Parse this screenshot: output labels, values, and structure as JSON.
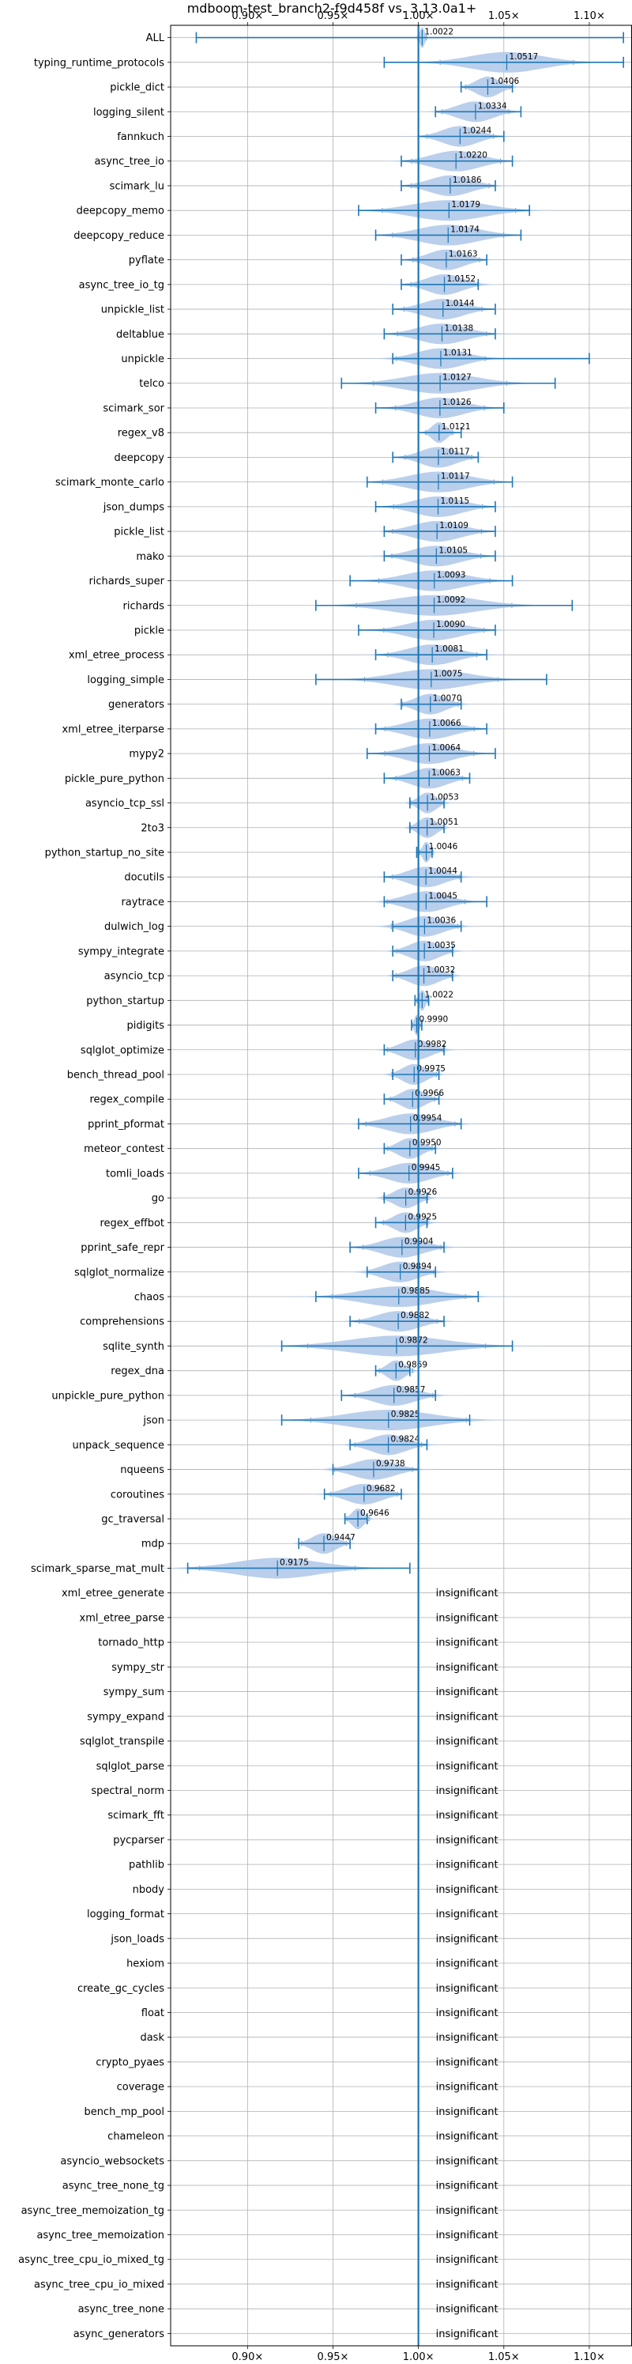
{
  "chart_data": {
    "type": "violin",
    "title": "mdboom-test_branch2-f9d458f vs. 3.13.0a1+",
    "xlim": [
      0.855,
      1.125
    ],
    "xticks": [
      0.9,
      0.95,
      1.0,
      1.05,
      1.1
    ],
    "xtick_labels": [
      "0.90×",
      "0.95×",
      "1.00×",
      "1.05×",
      "1.10×"
    ],
    "reference_line": 1.0,
    "grid": true,
    "colors": {
      "main": "#1f77b4",
      "violin": "#aec7e8",
      "grid": "#b0b0b0"
    },
    "insignificant_text": "insignificant",
    "benchmarks": [
      {
        "name": "ALL",
        "mean": 1.0022,
        "label": "1.0022",
        "min": 0.87,
        "max": 1.12,
        "width": 0.004
      },
      {
        "name": "typing_runtime_protocols",
        "mean": 1.0517,
        "label": "1.0517",
        "min": 0.98,
        "max": 1.12,
        "width": 0.06
      },
      {
        "name": "pickle_dict",
        "mean": 1.0406,
        "label": "1.0406",
        "min": 1.025,
        "max": 1.055,
        "width": 0.02
      },
      {
        "name": "logging_silent",
        "mean": 1.0334,
        "label": "1.0334",
        "min": 1.01,
        "max": 1.06,
        "width": 0.03
      },
      {
        "name": "fannkuch",
        "mean": 1.0244,
        "label": "1.0244",
        "min": 1.0,
        "max": 1.05,
        "width": 0.03
      },
      {
        "name": "async_tree_io",
        "mean": 1.022,
        "label": "1.0220",
        "min": 0.99,
        "max": 1.055,
        "width": 0.04
      },
      {
        "name": "scimark_lu",
        "mean": 1.0186,
        "label": "1.0186",
        "min": 0.99,
        "max": 1.045,
        "width": 0.035
      },
      {
        "name": "deepcopy_memo",
        "mean": 1.0179,
        "label": "1.0179",
        "min": 0.965,
        "max": 1.065,
        "width": 0.06
      },
      {
        "name": "deepcopy_reduce",
        "mean": 1.0174,
        "label": "1.0174",
        "min": 0.975,
        "max": 1.06,
        "width": 0.05
      },
      {
        "name": "pyflate",
        "mean": 1.0163,
        "label": "1.0163",
        "min": 0.99,
        "max": 1.04,
        "width": 0.03
      },
      {
        "name": "async_tree_io_tg",
        "mean": 1.0152,
        "label": "1.0152",
        "min": 0.99,
        "max": 1.035,
        "width": 0.03
      },
      {
        "name": "unpickle_list",
        "mean": 1.0144,
        "label": "1.0144",
        "min": 0.985,
        "max": 1.045,
        "width": 0.035
      },
      {
        "name": "deltablue",
        "mean": 1.0138,
        "label": "1.0138",
        "min": 0.98,
        "max": 1.045,
        "width": 0.04
      },
      {
        "name": "unpickle",
        "mean": 1.0131,
        "label": "1.0131",
        "min": 0.985,
        "max": 1.1,
        "width": 0.04
      },
      {
        "name": "telco",
        "mean": 1.0127,
        "label": "1.0127",
        "min": 0.955,
        "max": 1.08,
        "width": 0.06
      },
      {
        "name": "scimark_sor",
        "mean": 1.0126,
        "label": "1.0126",
        "min": 0.975,
        "max": 1.05,
        "width": 0.04
      },
      {
        "name": "regex_v8",
        "mean": 1.0121,
        "label": "1.0121",
        "min": 1.0,
        "max": 1.025,
        "width": 0.012
      },
      {
        "name": "deepcopy",
        "mean": 1.0117,
        "label": "1.0117",
        "min": 0.985,
        "max": 1.035,
        "width": 0.03
      },
      {
        "name": "scimark_monte_carlo",
        "mean": 1.0117,
        "label": "1.0117",
        "min": 0.97,
        "max": 1.055,
        "width": 0.05
      },
      {
        "name": "json_dumps",
        "mean": 1.0115,
        "label": "1.0115",
        "min": 0.975,
        "max": 1.045,
        "width": 0.04
      },
      {
        "name": "pickle_list",
        "mean": 1.0109,
        "label": "1.0109",
        "min": 0.98,
        "max": 1.045,
        "width": 0.04
      },
      {
        "name": "mako",
        "mean": 1.0105,
        "label": "1.0105",
        "min": 0.98,
        "max": 1.045,
        "width": 0.04
      },
      {
        "name": "richards_super",
        "mean": 1.0093,
        "label": "1.0093",
        "min": 0.96,
        "max": 1.055,
        "width": 0.05
      },
      {
        "name": "richards",
        "mean": 1.0092,
        "label": "1.0092",
        "min": 0.94,
        "max": 1.09,
        "width": 0.07
      },
      {
        "name": "pickle",
        "mean": 1.009,
        "label": "1.0090",
        "min": 0.965,
        "max": 1.045,
        "width": 0.045
      },
      {
        "name": "xml_etree_process",
        "mean": 1.0081,
        "label": "1.0081",
        "min": 0.975,
        "max": 1.04,
        "width": 0.04
      },
      {
        "name": "logging_simple",
        "mean": 1.0075,
        "label": "1.0075",
        "min": 0.94,
        "max": 1.075,
        "width": 0.06
      },
      {
        "name": "generators",
        "mean": 1.007,
        "label": "1.0070",
        "min": 0.99,
        "max": 1.025,
        "width": 0.025
      },
      {
        "name": "xml_etree_iterparse",
        "mean": 1.0066,
        "label": "1.0066",
        "min": 0.975,
        "max": 1.04,
        "width": 0.04
      },
      {
        "name": "mypy2",
        "mean": 1.0064,
        "label": "1.0064",
        "min": 0.97,
        "max": 1.045,
        "width": 0.04
      },
      {
        "name": "pickle_pure_python",
        "mean": 1.0063,
        "label": "1.0063",
        "min": 0.98,
        "max": 1.03,
        "width": 0.03
      },
      {
        "name": "asyncio_tcp_ssl",
        "mean": 1.0053,
        "label": "1.0053",
        "min": 0.995,
        "max": 1.015,
        "width": 0.015
      },
      {
        "name": "2to3",
        "mean": 1.0051,
        "label": "1.0051",
        "min": 0.995,
        "max": 1.015,
        "width": 0.015
      },
      {
        "name": "python_startup_no_site",
        "mean": 1.0046,
        "label": "1.0046",
        "min": 0.999,
        "max": 1.008,
        "width": 0.006
      },
      {
        "name": "docutils",
        "mean": 1.0044,
        "label": "1.0044",
        "min": 0.98,
        "max": 1.025,
        "width": 0.03
      },
      {
        "name": "raytrace",
        "mean": 1.0045,
        "label": "1.0045",
        "min": 0.98,
        "max": 1.04,
        "width": 0.035
      },
      {
        "name": "dulwich_log",
        "mean": 1.0036,
        "label": "1.0036",
        "min": 0.985,
        "max": 1.025,
        "width": 0.03
      },
      {
        "name": "sympy_integrate",
        "mean": 1.0035,
        "label": "1.0035",
        "min": 0.985,
        "max": 1.02,
        "width": 0.025
      },
      {
        "name": "asyncio_tcp",
        "mean": 1.0032,
        "label": "1.0032",
        "min": 0.985,
        "max": 1.02,
        "width": 0.025
      },
      {
        "name": "python_startup",
        "mean": 1.0022,
        "label": "1.0022",
        "min": 0.998,
        "max": 1.006,
        "width": 0.005
      },
      {
        "name": "pidigits",
        "mean": 0.999,
        "label": "0.9990",
        "min": 0.996,
        "max": 1.002,
        "width": 0.004
      },
      {
        "name": "sqlglot_optimize",
        "mean": 0.9982,
        "label": "0.9982",
        "min": 0.98,
        "max": 1.015,
        "width": 0.025
      },
      {
        "name": "bench_thread_pool",
        "mean": 0.9975,
        "label": "0.9975",
        "min": 0.985,
        "max": 1.012,
        "width": 0.02
      },
      {
        "name": "regex_compile",
        "mean": 0.9966,
        "label": "0.9966",
        "min": 0.98,
        "max": 1.012,
        "width": 0.02
      },
      {
        "name": "pprint_pformat",
        "mean": 0.9954,
        "label": "0.9954",
        "min": 0.965,
        "max": 1.025,
        "width": 0.04
      },
      {
        "name": "meteor_contest",
        "mean": 0.995,
        "label": "0.9950",
        "min": 0.98,
        "max": 1.01,
        "width": 0.02
      },
      {
        "name": "tomli_loads",
        "mean": 0.9945,
        "label": "0.9945",
        "min": 0.965,
        "max": 1.02,
        "width": 0.035
      },
      {
        "name": "go",
        "mean": 0.9926,
        "label": "0.9926",
        "min": 0.98,
        "max": 1.005,
        "width": 0.02
      },
      {
        "name": "regex_effbot",
        "mean": 0.9925,
        "label": "0.9925",
        "min": 0.975,
        "max": 1.005,
        "width": 0.02
      },
      {
        "name": "pprint_safe_repr",
        "mean": 0.9904,
        "label": "0.9904",
        "min": 0.96,
        "max": 1.015,
        "width": 0.035
      },
      {
        "name": "sqlglot_normalize",
        "mean": 0.9894,
        "label": "0.9894",
        "min": 0.97,
        "max": 1.01,
        "width": 0.03
      },
      {
        "name": "chaos",
        "mean": 0.9885,
        "label": "0.9885",
        "min": 0.94,
        "max": 1.035,
        "width": 0.06
      },
      {
        "name": "comprehensions",
        "mean": 0.9882,
        "label": "0.9882",
        "min": 0.96,
        "max": 1.015,
        "width": 0.035
      },
      {
        "name": "sqlite_synth",
        "mean": 0.9872,
        "label": "0.9872",
        "min": 0.92,
        "max": 1.055,
        "width": 0.08
      },
      {
        "name": "regex_dna",
        "mean": 0.9869,
        "label": "0.9869",
        "min": 0.975,
        "max": 0.995,
        "width": 0.015
      },
      {
        "name": "unpickle_pure_python",
        "mean": 0.9857,
        "label": "0.9857",
        "min": 0.955,
        "max": 1.01,
        "width": 0.035
      },
      {
        "name": "json",
        "mean": 0.9825,
        "label": "0.9825",
        "min": 0.92,
        "max": 1.03,
        "width": 0.07
      },
      {
        "name": "unpack_sequence",
        "mean": 0.9824,
        "label": "0.9824",
        "min": 0.96,
        "max": 1.005,
        "width": 0.03
      },
      {
        "name": "nqueens",
        "mean": 0.9738,
        "label": "0.9738",
        "min": 0.95,
        "max": 1.0,
        "width": 0.035
      },
      {
        "name": "coroutines",
        "mean": 0.9682,
        "label": "0.9682",
        "min": 0.945,
        "max": 0.99,
        "width": 0.03
      },
      {
        "name": "gc_traversal",
        "mean": 0.9646,
        "label": "0.9646",
        "min": 0.957,
        "max": 0.97,
        "width": 0.01
      },
      {
        "name": "mdp",
        "mean": 0.9447,
        "label": "0.9447",
        "min": 0.93,
        "max": 0.96,
        "width": 0.02
      },
      {
        "name": "scimark_sparse_mat_mult",
        "mean": 0.9175,
        "label": "0.9175",
        "min": 0.865,
        "max": 0.995,
        "width": 0.07
      },
      {
        "name": "xml_etree_generate",
        "insignificant": true
      },
      {
        "name": "xml_etree_parse",
        "insignificant": true
      },
      {
        "name": "tornado_http",
        "insignificant": true
      },
      {
        "name": "sympy_str",
        "insignificant": true
      },
      {
        "name": "sympy_sum",
        "insignificant": true
      },
      {
        "name": "sympy_expand",
        "insignificant": true
      },
      {
        "name": "sqlglot_transpile",
        "insignificant": true
      },
      {
        "name": "sqlglot_parse",
        "insignificant": true
      },
      {
        "name": "spectral_norm",
        "insignificant": true
      },
      {
        "name": "scimark_fft",
        "insignificant": true
      },
      {
        "name": "pycparser",
        "insignificant": true
      },
      {
        "name": "pathlib",
        "insignificant": true
      },
      {
        "name": "nbody",
        "insignificant": true
      },
      {
        "name": "logging_format",
        "insignificant": true
      },
      {
        "name": "json_loads",
        "insignificant": true
      },
      {
        "name": "hexiom",
        "insignificant": true
      },
      {
        "name": "create_gc_cycles",
        "insignificant": true
      },
      {
        "name": "float",
        "insignificant": true
      },
      {
        "name": "dask",
        "insignificant": true
      },
      {
        "name": "crypto_pyaes",
        "insignificant": true
      },
      {
        "name": "coverage",
        "insignificant": true
      },
      {
        "name": "bench_mp_pool",
        "insignificant": true
      },
      {
        "name": "chameleon",
        "insignificant": true
      },
      {
        "name": "asyncio_websockets",
        "insignificant": true
      },
      {
        "name": "async_tree_none_tg",
        "insignificant": true
      },
      {
        "name": "async_tree_memoization_tg",
        "insignificant": true
      },
      {
        "name": "async_tree_memoization",
        "insignificant": true
      },
      {
        "name": "async_tree_cpu_io_mixed_tg",
        "insignificant": true
      },
      {
        "name": "async_tree_cpu_io_mixed",
        "insignificant": true
      },
      {
        "name": "async_tree_none",
        "insignificant": true
      },
      {
        "name": "async_generators",
        "insignificant": true
      }
    ]
  }
}
